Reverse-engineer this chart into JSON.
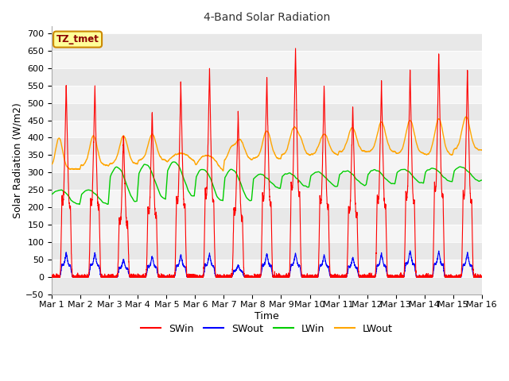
{
  "title": "4-Band Solar Radiation",
  "xlabel": "Time",
  "ylabel": "Solar Radiation (W/m2)",
  "ylim": [
    -50,
    720
  ],
  "xlim": [
    0,
    15
  ],
  "annotation": "TZ_tmet",
  "xtick_labels": [
    "Mar 1",
    "Mar 2",
    "Mar 3",
    "Mar 4",
    "Mar 5",
    "Mar 6",
    "Mar 7",
    "Mar 8",
    "Mar 9",
    "Mar 10",
    "Mar 11",
    "Mar 12",
    "Mar 13",
    "Mar 14",
    "Mar 15",
    "Mar 16"
  ],
  "xtick_positions": [
    0,
    1,
    2,
    3,
    4,
    5,
    6,
    7,
    8,
    9,
    10,
    11,
    12,
    13,
    14,
    15
  ],
  "ytick_positions": [
    -50,
    0,
    50,
    100,
    150,
    200,
    250,
    300,
    350,
    400,
    450,
    500,
    550,
    600,
    650,
    700
  ],
  "band_colors": [
    "#e8e8e8",
    "#f5f5f5"
  ],
  "swin_color": "red",
  "swout_color": "blue",
  "lwin_color": "#00cc00",
  "lwout_color": "orange",
  "fig_facecolor": "#ffffff",
  "plot_facecolor": "#ffffff",
  "grid_color": "#d0d0d0",
  "annotation_facecolor": "#ffff99",
  "annotation_edgecolor": "#cc8800",
  "annotation_textcolor": "#8b0000",
  "title_fontsize": 10,
  "axis_fontsize": 9,
  "tick_fontsize": 8
}
